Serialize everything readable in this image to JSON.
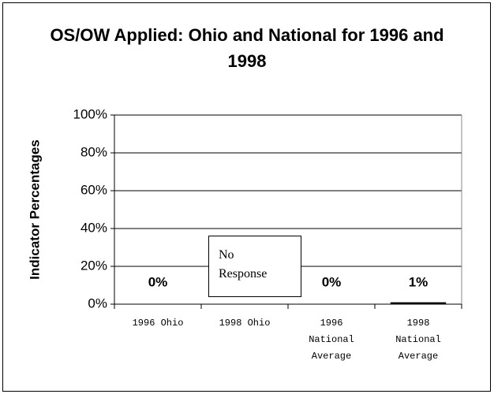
{
  "chart_data": {
    "type": "bar",
    "title": "OS/OW Applied: Ohio and National for 1996 and 1998",
    "ylabel": "Indicator Percentages",
    "categories": [
      "1996 Ohio",
      "1998 Ohio",
      "1996 National Average",
      "1998 National Average"
    ],
    "values": [
      0,
      null,
      0,
      1
    ],
    "value_labels": [
      "0%",
      null,
      "0%",
      "1%"
    ],
    "color": "#000000",
    "ylim": [
      0,
      100
    ],
    "yticks": [
      {
        "value": 0,
        "label": "0%"
      },
      {
        "value": 20,
        "label": "20%"
      },
      {
        "value": 40,
        "label": "40%"
      },
      {
        "value": 60,
        "label": "60%"
      },
      {
        "value": 80,
        "label": "80%"
      },
      {
        "value": 100,
        "label": "100%"
      }
    ],
    "grid": true,
    "annotations": [
      "No Response"
    ]
  }
}
